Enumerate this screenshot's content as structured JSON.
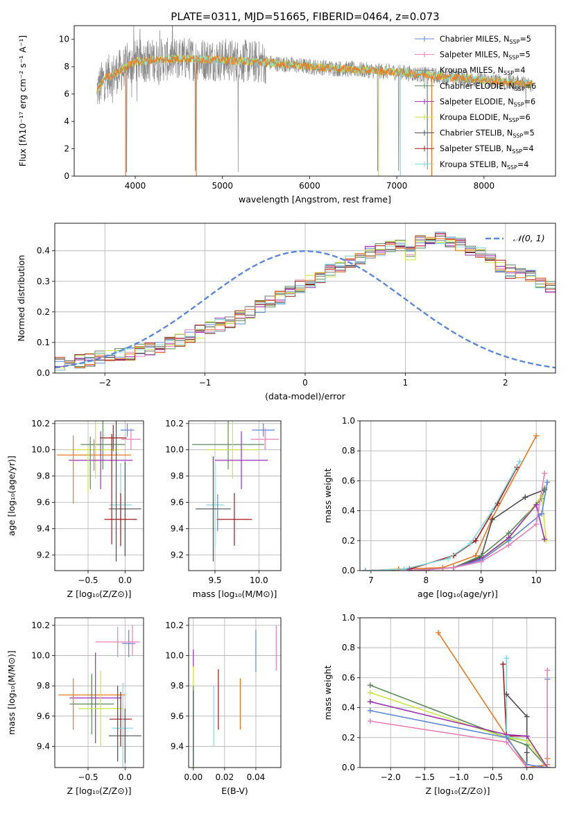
{
  "figure": {
    "title": "PLATE=0311, MJD=51665, FIBERID=0464, z=0.073"
  },
  "colors": {
    "Chabrier_MILES": "#5b87d6",
    "Salpeter_MILES": "#e87fb6",
    "Kroupa_MILES": "#7a7a7a",
    "Chabrier_ELODIE": "#5a8a5a",
    "Salpeter_ELODIE": "#9a2fb2",
    "Kroupa_ELODIE": "#c8e640",
    "Chabrier_STELIB": "#4d4d4d",
    "Salpeter_STELIB": "#a41818",
    "Kroupa_STELIB": "#7fd8dc",
    "orange": "#e87820",
    "normal": "#5b87d6"
  },
  "chart_data": [
    {
      "id": "spectrum",
      "type": "line",
      "xlabel": "wavelength [Angstrom, rest frame]",
      "ylabel": "Flux [fλ10⁻¹⁷ erg cm⁻² s⁻¹ A⁻¹]",
      "xlim": [
        3300,
        8820
      ],
      "ylim": [
        0,
        11
      ],
      "xticks": [
        4000,
        5000,
        6000,
        7000,
        8000
      ],
      "yticks": [
        0,
        2,
        4,
        6,
        8,
        10
      ],
      "legend_position": "top-right",
      "legend": [
        {
          "label": "Chabrier MILES, N",
          "sub": "SSP",
          "suffix": "=5",
          "color": "#5b87d6"
        },
        {
          "label": "Salpeter MILES, N",
          "sub": "SSP",
          "suffix": "=5",
          "color": "#e87fb6"
        },
        {
          "label": "Kroupa MILES, N",
          "sub": "SSP",
          "suffix": "=4",
          "color": "#7a7a7a"
        },
        {
          "label": "Chabrier ELODIE, N",
          "sub": "SSP",
          "suffix": "=6",
          "color": "#5a8a5a"
        },
        {
          "label": "Salpeter ELODIE, N",
          "sub": "SSP",
          "suffix": "=6",
          "color": "#9a2fb2"
        },
        {
          "label": "Kroupa ELODIE, N",
          "sub": "SSP",
          "suffix": "=6",
          "color": "#c8e640"
        },
        {
          "label": "Chabrier STELIB, N",
          "sub": "SSP",
          "suffix": "=5",
          "color": "#4d4d4d"
        },
        {
          "label": "Salpeter STELIB, N",
          "sub": "SSP",
          "suffix": "=4",
          "color": "#a41818"
        },
        {
          "label": "Kroupa STELIB, N",
          "sub": "SSP",
          "suffix": "=4",
          "color": "#7fd8dc"
        }
      ],
      "data_range": [
        3560,
        8560
      ],
      "continuum": [
        [
          3560,
          6.2
        ],
        [
          3650,
          7.2
        ],
        [
          3800,
          7.6
        ],
        [
          4000,
          8.4
        ],
        [
          4300,
          8.5
        ],
        [
          4500,
          8.6
        ],
        [
          5000,
          8.5
        ],
        [
          5500,
          8.3
        ],
        [
          6000,
          8.0
        ],
        [
          6500,
          7.8
        ],
        [
          7000,
          7.6
        ],
        [
          7500,
          7.3
        ],
        [
          8000,
          7.0
        ],
        [
          8560,
          6.7
        ]
      ],
      "dips": [
        [
          3900,
          0.3
        ],
        [
          4690,
          0.4
        ],
        [
          5180,
          0.3
        ],
        [
          6780,
          0.4
        ],
        [
          7020,
          0.4
        ],
        [
          7350,
          0.5
        ],
        [
          8480,
          5.0
        ]
      ]
    },
    {
      "id": "residuals",
      "type": "histogram",
      "xlabel": "(data-model)/error",
      "ylabel": "Normed distribution",
      "xlim": [
        -2.5,
        2.5
      ],
      "ylim": [
        0,
        0.49
      ],
      "xticks": [
        -2,
        -1,
        0,
        1,
        2
      ],
      "yticks": [
        0.0,
        0.1,
        0.2,
        0.3,
        0.4
      ],
      "grid": true,
      "legend_position": "top-right",
      "legend_label": "𝒩(0, 1)",
      "bin_width": 0.1,
      "bins_from": -2.5,
      "base_heights": [
        0.03,
        0.033,
        0.038,
        0.045,
        0.052,
        0.056,
        0.058,
        0.064,
        0.072,
        0.08,
        0.088,
        0.097,
        0.109,
        0.122,
        0.135,
        0.148,
        0.158,
        0.17,
        0.182,
        0.2,
        0.215,
        0.232,
        0.248,
        0.268,
        0.285,
        0.3,
        0.318,
        0.335,
        0.35,
        0.362,
        0.375,
        0.395,
        0.405,
        0.415,
        0.42,
        0.39,
        0.43,
        0.44,
        0.445,
        0.43,
        0.42,
        0.4,
        0.395,
        0.37,
        0.35,
        0.332,
        0.325,
        0.315,
        0.3,
        0.285,
        0.27,
        0.255,
        0.238,
        0.222,
        0.205,
        0.19,
        0.175,
        0.16,
        0.148,
        0.138,
        0.128,
        0.115,
        0.1,
        0.092,
        0.086,
        0.08,
        0.072,
        0.066,
        0.06,
        0.054,
        0.048,
        0.044,
        0.041,
        0.037,
        0.033
      ],
      "series_colors": [
        "#5b87d6",
        "#e87fb6",
        "#7a7a7a",
        "#5a8a5a",
        "#9a2fb2",
        "#c8e640",
        "#4d4d4d",
        "#a41818",
        "#7fd8dc",
        "#e87820"
      ]
    },
    {
      "id": "age_vs_Z",
      "type": "errorbar",
      "xlabel": "Z [log₁₀(Z/Z⊙)]",
      "ylabel": "age  [log₁₀(age/yr)]",
      "xlim": [
        -0.95,
        0.25
      ],
      "ylim": [
        9.08,
        10.22
      ],
      "xticks": [
        -0.5,
        0.0
      ],
      "yticks": [
        9.2,
        9.4,
        9.6,
        9.8,
        10.0,
        10.2
      ],
      "grid": true,
      "points": [
        {
          "x": 0.03,
          "y": 10.15,
          "xerr": 0.09,
          "yerr": 0.05,
          "color": "#5b87d6"
        },
        {
          "x": 0.08,
          "y": 10.08,
          "xerr": 0.13,
          "yerr": 0.08,
          "color": "#e87fb6"
        },
        {
          "x": -0.16,
          "y": 10.09,
          "xerr": 0.18,
          "yerr": 0.1,
          "color": "#a41818"
        },
        {
          "x": -0.3,
          "y": 10.04,
          "xerr": 0.3,
          "yerr": 0.19,
          "color": "#5a8a5a"
        },
        {
          "x": -0.4,
          "y": 10.0,
          "xerr": 0.35,
          "yerr": 0.22,
          "color": "#c8e640"
        },
        {
          "x": -0.42,
          "y": 9.96,
          "xerr": 0.5,
          "yerr": 0.12,
          "color": "#e87820"
        },
        {
          "x": -0.33,
          "y": 9.92,
          "xerr": 0.43,
          "yerr": 0.22,
          "color": "#9a2fb2"
        },
        {
          "x": -0.06,
          "y": 9.58,
          "xerr": 0.15,
          "yerr": 0.32,
          "color": "#7fd8dc"
        },
        {
          "x": 0.0,
          "y": 9.55,
          "xerr": 0.22,
          "yerr": 0.36,
          "color": "#4d4d4d"
        },
        {
          "x": -0.06,
          "y": 9.47,
          "xerr": 0.22,
          "yerr": 0.2,
          "color": "#a41818"
        },
        {
          "x": -0.5,
          "y": 9.85,
          "xerr": 0.0,
          "yerr": 0.18,
          "color": "#c8e640"
        },
        {
          "x": -0.47,
          "y": 9.9,
          "xerr": 0.0,
          "yerr": 0.2,
          "color": "#5a8a5a"
        },
        {
          "x": -0.7,
          "y": 9.85,
          "xerr": 0.0,
          "yerr": 0.26,
          "color": "#e87820"
        },
        {
          "x": -0.18,
          "y": 9.7,
          "xerr": 0.0,
          "yerr": 0.42,
          "color": "#a41818"
        },
        {
          "x": -0.12,
          "y": 9.7,
          "xerr": 0.0,
          "yerr": 0.55,
          "color": "#4d4d4d"
        }
      ]
    },
    {
      "id": "age_vs_mass",
      "type": "errorbar",
      "xlabel": "mass [log₁₀(M/M⊙)]",
      "ylabel": "",
      "xlim": [
        9.2,
        10.25
      ],
      "ylim": [
        9.08,
        10.22
      ],
      "xticks": [
        9.5,
        10.0
      ],
      "yticks": [
        9.2,
        9.4,
        9.6,
        9.8,
        10.0,
        10.2
      ],
      "grid": true,
      "points": [
        {
          "x": 10.05,
          "y": 10.15,
          "xerr": 0.13,
          "yerr": 0.05,
          "color": "#5b87d6"
        },
        {
          "x": 10.07,
          "y": 10.08,
          "xerr": 0.16,
          "yerr": 0.08,
          "color": "#e87fb6"
        },
        {
          "x": 9.65,
          "y": 10.04,
          "xerr": 0.41,
          "yerr": 0.19,
          "color": "#5a8a5a"
        },
        {
          "x": 9.7,
          "y": 10.0,
          "xerr": 0.3,
          "yerr": 0.22,
          "color": "#c8e640"
        },
        {
          "x": 9.8,
          "y": 9.92,
          "xerr": 0.3,
          "yerr": 0.22,
          "color": "#9a2fb2"
        },
        {
          "x": 9.5,
          "y": 9.58,
          "xerr": 0.1,
          "yerr": 0.32,
          "color": "#7fd8dc"
        },
        {
          "x": 9.48,
          "y": 9.55,
          "xerr": 0.2,
          "yerr": 0.4,
          "color": "#4d4d4d"
        },
        {
          "x": 9.72,
          "y": 9.47,
          "xerr": 0.2,
          "yerr": 0.2,
          "color": "#a41818"
        },
        {
          "x": 9.53,
          "y": 9.52,
          "xerr": 0.0,
          "yerr": 0.14,
          "color": "#5b87d6"
        }
      ]
    },
    {
      "id": "weight_vs_age",
      "type": "line",
      "xlabel": "age  [log₁₀(age/yr)]",
      "ylabel": "mass weight",
      "xlim": [
        6.8,
        10.35
      ],
      "ylim": [
        0.0,
        1.0
      ],
      "xticks": [
        7,
        8,
        9,
        10
      ],
      "yticks": [
        0.0,
        0.2,
        0.4,
        0.6,
        0.8,
        1.0
      ],
      "grid": true,
      "series": [
        {
          "color": "#e87820",
          "x": [
            6.9,
            7.5,
            8.3,
            8.9,
            9.2,
            10.0
          ],
          "y": [
            0.0,
            0.01,
            0.02,
            0.1,
            0.35,
            0.9
          ]
        },
        {
          "color": "#a41818",
          "x": [
            6.9,
            7.7,
            8.5,
            8.9,
            9.3,
            9.65
          ],
          "y": [
            0.0,
            0.01,
            0.1,
            0.2,
            0.45,
            0.69
          ]
        },
        {
          "color": "#7fd8dc",
          "x": [
            6.9,
            7.6,
            8.4,
            8.8,
            9.2,
            9.7
          ],
          "y": [
            0.0,
            0.01,
            0.08,
            0.18,
            0.4,
            0.73
          ]
        },
        {
          "color": "#4d4d4d",
          "x": [
            7.8,
            8.5,
            9.0,
            9.2,
            9.8,
            10.15
          ],
          "y": [
            0.0,
            0.02,
            0.09,
            0.34,
            0.49,
            0.54
          ]
        },
        {
          "color": "#5a8a5a",
          "x": [
            7.7,
            8.5,
            9.0,
            9.5,
            10.1,
            10.15
          ],
          "y": [
            0.0,
            0.02,
            0.1,
            0.25,
            0.48,
            0.55
          ]
        },
        {
          "color": "#c8e640",
          "x": [
            7.7,
            8.5,
            9.0,
            9.5,
            10.1,
            10.18
          ],
          "y": [
            0.0,
            0.02,
            0.08,
            0.21,
            0.5,
            0.2
          ]
        },
        {
          "color": "#9a2fb2",
          "x": [
            7.7,
            8.5,
            9.0,
            9.5,
            10.0,
            10.15
          ],
          "y": [
            0.0,
            0.02,
            0.08,
            0.22,
            0.44,
            0.21
          ]
        },
        {
          "color": "#5b87d6",
          "x": [
            7.8,
            8.5,
            9.0,
            9.5,
            10.1,
            10.2
          ],
          "y": [
            0.0,
            0.02,
            0.07,
            0.2,
            0.38,
            0.59
          ]
        },
        {
          "color": "#e87fb6",
          "x": [
            7.8,
            8.5,
            9.0,
            9.5,
            10.0,
            10.15
          ],
          "y": [
            0.0,
            0.02,
            0.06,
            0.17,
            0.31,
            0.65
          ]
        }
      ]
    },
    {
      "id": "mass_vs_Z",
      "type": "errorbar",
      "xlabel": "Z [log₁₀(Z/Z⊙)]",
      "ylabel": "mass [log₁₀(M/M⊙)]",
      "xlim": [
        -0.95,
        0.25
      ],
      "ylim": [
        9.26,
        10.25
      ],
      "xticks": [
        -0.5,
        0.0
      ],
      "yticks": [
        9.4,
        9.6,
        9.8,
        10.0,
        10.2
      ],
      "grid": true,
      "points": [
        {
          "x": 0.05,
          "y": 10.08,
          "xerr": 0.09,
          "yerr": 0.09,
          "color": "#5b87d6"
        },
        {
          "x": -0.1,
          "y": 10.09,
          "xerr": 0.3,
          "yerr": 0.1,
          "color": "#e87fb6"
        },
        {
          "x": -0.45,
          "y": 9.74,
          "xerr": 0.45,
          "yerr": 0.12,
          "color": "#e87820"
        },
        {
          "x": -0.4,
          "y": 9.72,
          "xerr": 0.35,
          "yerr": 0.3,
          "color": "#9a2fb2"
        },
        {
          "x": -0.45,
          "y": 9.68,
          "xerr": 0.3,
          "yerr": 0.2,
          "color": "#5a8a5a"
        },
        {
          "x": -0.33,
          "y": 9.65,
          "xerr": 0.3,
          "yerr": 0.25,
          "color": "#c8e640"
        },
        {
          "x": -0.06,
          "y": 9.58,
          "xerr": 0.15,
          "yerr": 0.18,
          "color": "#a41818"
        },
        {
          "x": -0.03,
          "y": 9.52,
          "xerr": 0.14,
          "yerr": 0.3,
          "color": "#7fd8dc"
        },
        {
          "x": 0.0,
          "y": 9.47,
          "xerr": 0.22,
          "yerr": 0.18,
          "color": "#4d4d4d"
        },
        {
          "x": 0.1,
          "y": 10.1,
          "xerr": 0.0,
          "yerr": 0.1,
          "color": "#e87fb6"
        },
        {
          "x": -0.1,
          "y": 9.55,
          "xerr": 0.0,
          "yerr": 0.25,
          "color": "#4d4d4d"
        },
        {
          "x": -0.7,
          "y": 9.68,
          "xerr": 0.0,
          "yerr": 0.17,
          "color": "#e87820"
        }
      ]
    },
    {
      "id": "mass_vs_ebv",
      "type": "errorbar",
      "xlabel": "E(B-V)",
      "ylabel": "",
      "xlim": [
        -0.003,
        0.056
      ],
      "ylim": [
        9.26,
        10.25
      ],
      "xticks": [
        0.0,
        0.02,
        0.04
      ],
      "tick_labels": [
        "0.00",
        "0.02",
        "0.04"
      ],
      "yticks": [
        9.4,
        9.6,
        9.8,
        10.0,
        10.2
      ],
      "grid": true,
      "points": [
        {
          "x": 0.0,
          "y": 9.98,
          "xerr": 0.0,
          "yerr": 0.06,
          "color": "#9a2fb2"
        },
        {
          "x": 0.0,
          "y": 9.85,
          "xerr": 0.0,
          "yerr": 0.08,
          "color": "#c8e640"
        },
        {
          "x": 0.0,
          "y": 9.5,
          "xerr": 0.0,
          "yerr": 0.3,
          "color": "#5a8a5a"
        },
        {
          "x": 0.0,
          "y": 9.52,
          "xerr": 0.0,
          "yerr": 0.25,
          "color": "#4d4d4d"
        },
        {
          "x": 0.013,
          "y": 9.6,
          "xerr": 0.0,
          "yerr": 0.2,
          "color": "#7fd8dc"
        },
        {
          "x": 0.016,
          "y": 9.71,
          "xerr": 0.0,
          "yerr": 0.2,
          "color": "#a41818"
        },
        {
          "x": 0.03,
          "y": 9.68,
          "xerr": 0.0,
          "yerr": 0.17,
          "color": "#e87820"
        },
        {
          "x": 0.04,
          "y": 10.03,
          "xerr": 0.0,
          "yerr": 0.14,
          "color": "#5b87d6"
        },
        {
          "x": 0.053,
          "y": 10.05,
          "xerr": 0.0,
          "yerr": 0.15,
          "color": "#e87fb6"
        }
      ]
    },
    {
      "id": "weight_vs_Z",
      "type": "line",
      "xlabel": "Z [log₁₀(Z/Z⊙)]",
      "ylabel": "mass weight",
      "xlim": [
        -2.45,
        0.42
      ],
      "ylim": [
        0.0,
        1.0
      ],
      "xticks": [
        -2.0,
        -1.5,
        -1.0,
        -0.5,
        0.0
      ],
      "yticks": [
        0.0,
        0.2,
        0.4,
        0.6,
        0.8,
        1.0
      ],
      "grid": true,
      "series": [
        {
          "color": "#e87820",
          "x": [
            -1.3,
            -0.3,
            0.0,
            0.3,
            0.3
          ],
          "y": [
            0.9,
            0.21,
            0.0,
            0.02,
            0.06
          ]
        },
        {
          "color": "#a41818",
          "x": [
            -0.35,
            -0.3,
            0.0,
            0.0
          ],
          "y": [
            0.69,
            0.21,
            0.21,
            0.0
          ]
        },
        {
          "color": "#7fd8dc",
          "x": [
            -0.3,
            -0.3,
            0.0,
            0.0
          ],
          "y": [
            0.73,
            0.21,
            0.18,
            0.0
          ]
        },
        {
          "color": "#4d4d4d",
          "x": [
            -0.3,
            0.0,
            0.0,
            0.0
          ],
          "y": [
            0.49,
            0.34,
            0.1,
            0.0
          ]
        },
        {
          "color": "#5a8a5a",
          "x": [
            -2.3,
            -0.3,
            0.0,
            0.3
          ],
          "y": [
            0.55,
            0.2,
            0.15,
            0.0
          ]
        },
        {
          "color": "#c8e640",
          "x": [
            -2.3,
            -0.3,
            0.0,
            0.3
          ],
          "y": [
            0.5,
            0.2,
            0.18,
            0.0
          ]
        },
        {
          "color": "#9a2fb2",
          "x": [
            -2.3,
            -0.3,
            0.0,
            0.3
          ],
          "y": [
            0.44,
            0.22,
            0.21,
            0.0
          ]
        },
        {
          "color": "#5b87d6",
          "x": [
            -2.3,
            -0.3,
            0.0,
            0.3,
            0.3
          ],
          "y": [
            0.38,
            0.2,
            0.02,
            0.0,
            0.59
          ]
        },
        {
          "color": "#e87fb6",
          "x": [
            -2.3,
            -0.3,
            0.0,
            0.3,
            0.3
          ],
          "y": [
            0.31,
            0.17,
            0.0,
            0.0,
            0.65
          ]
        }
      ]
    }
  ]
}
